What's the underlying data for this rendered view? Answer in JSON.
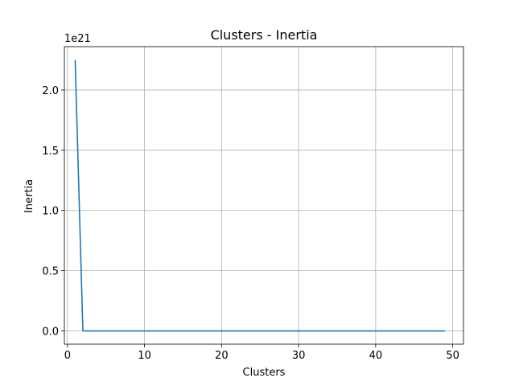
{
  "chart_data": {
    "type": "line",
    "title": "Clusters - Inertia",
    "xlabel": "Clusters",
    "ylabel": "Inertia",
    "offset_text": "1e21",
    "xlim": [
      -0.4,
      51.4
    ],
    "ylim": [
      -0.11,
      2.36
    ],
    "y_scale_multiplier": 1e+21,
    "x_ticks": [
      0,
      10,
      20,
      30,
      40,
      50
    ],
    "x_tick_labels": [
      "0",
      "10",
      "20",
      "30",
      "40",
      "50"
    ],
    "y_ticks": [
      0.0,
      0.5,
      1.0,
      1.5,
      2.0
    ],
    "y_tick_labels": [
      "0.0",
      "0.5",
      "1.0",
      "1.5",
      "2.0"
    ],
    "grid": true,
    "series": [
      {
        "color": "#1f77b4",
        "x": [
          1,
          2,
          3,
          4,
          5,
          6,
          7,
          8,
          9,
          10,
          11,
          12,
          13,
          14,
          15,
          16,
          17,
          18,
          19,
          20,
          21,
          22,
          23,
          24,
          25,
          26,
          27,
          28,
          29,
          30,
          31,
          32,
          33,
          34,
          35,
          36,
          37,
          38,
          39,
          40,
          41,
          42,
          43,
          44,
          45,
          46,
          47,
          48,
          49
        ],
        "y": [
          2.25,
          0.0,
          0.0,
          0.0,
          0.0,
          0.0,
          0.0,
          0.0,
          0.0,
          0.0,
          0.0,
          0.0,
          0.0,
          0.0,
          0.0,
          0.0,
          0.0,
          0.0,
          0.0,
          0.0,
          0.0,
          0.0,
          0.0,
          0.0,
          0.0,
          0.0,
          0.0,
          0.0,
          0.0,
          0.0,
          0.0,
          0.0,
          0.0,
          0.0,
          0.0,
          0.0,
          0.0,
          0.0,
          0.0,
          0.0,
          0.0,
          0.0,
          0.0,
          0.0,
          0.0,
          0.0,
          0.0,
          0.0,
          0.0
        ]
      }
    ]
  }
}
